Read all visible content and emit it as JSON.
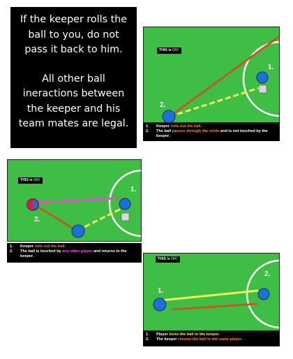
{
  "rule": {
    "line1": [
      "If the keeper rolls the",
      "ball to you, do not",
      "pass it back to him."
    ],
    "line2": [
      "All other ball",
      "ineractions between",
      "the keeper and his",
      "team mates are legal."
    ]
  },
  "panel1": {
    "tag_prefix": "THIS is ",
    "tag_ok": "OK!",
    "label1": "1.",
    "label2": "2.",
    "caption": [
      {
        "num": "1.",
        "parts": [
          {
            "t": "Keeper ",
            "c": ""
          },
          {
            "t": "rolls out the ball.",
            "c": "orange"
          }
        ]
      },
      {
        "num": "2.",
        "parts": [
          {
            "t": "The ball ",
            "c": ""
          },
          {
            "t": "passes through the circle",
            "c": "orange"
          },
          {
            "t": " and is not touched by the keeper.",
            "c": ""
          }
        ]
      }
    ]
  },
  "panel2": {
    "tag_prefix": "THIS is ",
    "tag_ok": "OK!",
    "label1": "1.",
    "label2": "2.",
    "caption": [
      {
        "num": "1.",
        "parts": [
          {
            "t": "Keeper ",
            "c": ""
          },
          {
            "t": "rolls out the ball.",
            "c": "orange"
          }
        ]
      },
      {
        "num": "2.",
        "parts": [
          {
            "t": "The ball is touched by ",
            "c": ""
          },
          {
            "t": "any other player",
            "c": "magenta"
          },
          {
            "t": " and returns to the keeper.",
            "c": ""
          }
        ]
      }
    ]
  },
  "panel3": {
    "tag_prefix": "THIS is ",
    "tag_ok": "OK!",
    "label1": "1.",
    "label2": "2.",
    "caption": [
      {
        "num": "1.",
        "parts": [
          {
            "t": "Player ",
            "c": ""
          },
          {
            "t": "kicks the ball to the keeper.",
            "c": "yellow"
          }
        ]
      },
      {
        "num": "2.",
        "parts": [
          {
            "t": "The keeper ",
            "c": ""
          },
          {
            "t": "returns the ball to the same player.",
            "c": "orange"
          }
        ]
      }
    ]
  },
  "colors": {
    "field": "#3fbe45",
    "player": "#1e6fd8",
    "roll_line": "#c05a26",
    "pass_line": "#ecf35a",
    "other_player_line": "#e052c8",
    "circle": "#ffffff"
  }
}
